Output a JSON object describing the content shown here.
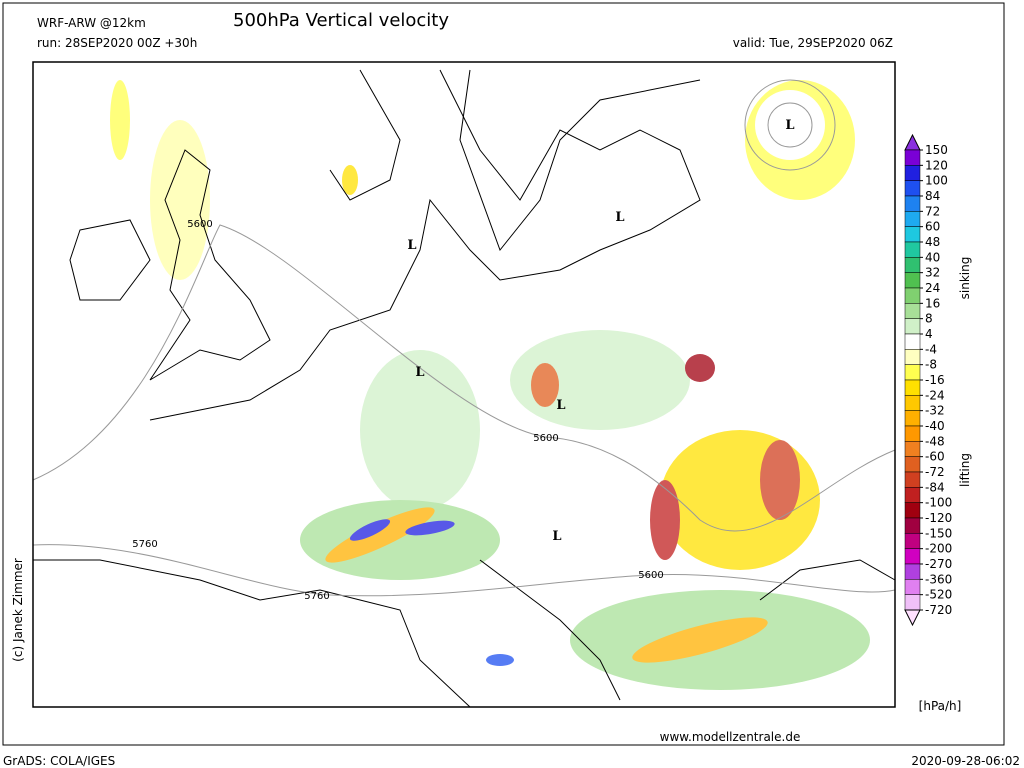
{
  "header": {
    "model": "WRF-ARW @12km",
    "title": "500hPa Vertical velocity",
    "run": "run: 28SEP2020 00Z +30h",
    "valid": "valid: Tue, 29SEP2020 06Z"
  },
  "map": {
    "lows": [
      "L",
      "L",
      "L",
      "L",
      "L",
      "L"
    ],
    "contours": [
      "5600",
      "5600",
      "5600",
      "5760",
      "5760"
    ]
  },
  "colorbar": {
    "levels": [
      150,
      120,
      100,
      84,
      72,
      60,
      48,
      40,
      32,
      24,
      16,
      8,
      4,
      -4,
      -8,
      -16,
      -24,
      -32,
      -40,
      -48,
      -60,
      -72,
      -84,
      -100,
      -120,
      -150,
      -200,
      -270,
      -360,
      -520,
      -720
    ],
    "colors": [
      "#8a30e0",
      "#7a00d6",
      "#2020e0",
      "#1e50f0",
      "#1e82f0",
      "#1eaaf0",
      "#1ec8e0",
      "#20c8a0",
      "#30c070",
      "#50c050",
      "#80d070",
      "#a8e098",
      "#d0f0c8",
      "#ffffff",
      "#ffffc0",
      "#ffff50",
      "#ffe000",
      "#ffc800",
      "#ffb000",
      "#ff9800",
      "#f08020",
      "#e06020",
      "#d04020",
      "#c02020",
      "#a00010",
      "#a00040",
      "#c00080",
      "#d000c0",
      "#b040e0",
      "#e080f0",
      "#f0c0f8",
      "#ffe0ff"
    ],
    "upper_label": "sinking",
    "lower_label": "lifting",
    "unit": "[hPa/h]"
  },
  "footer": {
    "credit": "(c) Janek Zimmer",
    "website": "www.modellzentrale.de",
    "software": "GrADS: COLA/IGES",
    "timestamp": "2020-09-28-06:02"
  }
}
